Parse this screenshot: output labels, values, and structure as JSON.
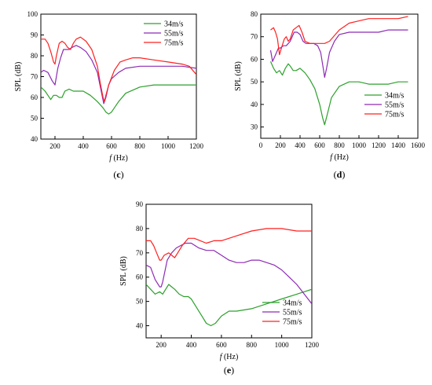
{
  "series_colors": {
    "34m/s": "#2ca02c",
    "55m/s": "#8e2ab5",
    "75m/s": "#ff2020"
  },
  "chart_data": [
    {
      "panel_label": "(c)",
      "type": "line",
      "xlabel_italic": "f",
      "xlabel_unit": "(Hz)",
      "ylabel": "SPL (dB)",
      "xlim": [
        100,
        1200
      ],
      "ylim": [
        40,
        100
      ],
      "xticks": [
        200,
        400,
        600,
        800,
        1000,
        1200
      ],
      "yticks": [
        40,
        50,
        60,
        70,
        80,
        90,
        100
      ],
      "legend_position": "top-right",
      "series": [
        {
          "name": "34m/s",
          "x": [
            100,
            130,
            150,
            170,
            190,
            210,
            230,
            250,
            270,
            300,
            330,
            360,
            400,
            450,
            500,
            540,
            560,
            580,
            600,
            650,
            700,
            800,
            900,
            1000,
            1100,
            1200
          ],
          "y": [
            65,
            63,
            61,
            59,
            61,
            61,
            60,
            60,
            63,
            64,
            63,
            63,
            63,
            61,
            58,
            55,
            53,
            52,
            53,
            58,
            62,
            65,
            66,
            66,
            66,
            66
          ]
        },
        {
          "name": "55m/s",
          "x": [
            100,
            120,
            150,
            180,
            200,
            220,
            240,
            260,
            280,
            300,
            320,
            350,
            380,
            420,
            460,
            500,
            530,
            545,
            560,
            580,
            600,
            650,
            700,
            800,
            900,
            1000,
            1100,
            1200
          ],
          "y": [
            72,
            73,
            72,
            68,
            66,
            74,
            79,
            83,
            83,
            83,
            84,
            85,
            84,
            82,
            78,
            72,
            62,
            57,
            60,
            66,
            69,
            72,
            74,
            75,
            75,
            75,
            75,
            74
          ]
        },
        {
          "name": "75m/s",
          "x": [
            100,
            130,
            150,
            170,
            190,
            200,
            210,
            230,
            250,
            270,
            290,
            310,
            330,
            350,
            380,
            420,
            460,
            500,
            520,
            540,
            550,
            560,
            580,
            620,
            660,
            700,
            750,
            800,
            900,
            1000,
            1100,
            1150,
            1200
          ],
          "y": [
            88,
            88,
            86,
            82,
            77,
            76,
            80,
            86,
            87,
            86,
            84,
            83,
            86,
            88,
            89,
            87,
            83,
            75,
            67,
            60,
            58,
            61,
            66,
            73,
            77,
            78,
            79,
            79,
            78,
            77,
            76,
            75,
            71
          ]
        }
      ]
    },
    {
      "panel_label": "(d)",
      "type": "line",
      "xlabel_italic": "f",
      "xlabel_unit": "(Hz)",
      "ylabel": "SPL (dB)",
      "xlim": [
        0,
        1600
      ],
      "ylim": [
        25,
        80
      ],
      "xticks": [
        0,
        200,
        400,
        600,
        800,
        1000,
        1200,
        1400,
        1600
      ],
      "yticks": [
        30,
        40,
        50,
        60,
        70,
        80
      ],
      "legend_position": "bottom-right",
      "series": [
        {
          "name": "34m/s",
          "x": [
            100,
            130,
            160,
            190,
            220,
            250,
            280,
            300,
            330,
            360,
            400,
            450,
            500,
            550,
            600,
            630,
            650,
            680,
            720,
            800,
            900,
            1000,
            1100,
            1200,
            1300,
            1400,
            1500
          ],
          "y": [
            59,
            56,
            54,
            55,
            53,
            56,
            58,
            57,
            55,
            55,
            56,
            54,
            51,
            47,
            40,
            34,
            31,
            36,
            43,
            48,
            50,
            50,
            49,
            49,
            49,
            50,
            50
          ]
        },
        {
          "name": "55m/s",
          "x": [
            100,
            120,
            150,
            180,
            200,
            230,
            260,
            300,
            340,
            370,
            400,
            430,
            460,
            500,
            540,
            580,
            610,
            640,
            650,
            670,
            700,
            750,
            800,
            900,
            1000,
            1100,
            1200,
            1300,
            1400,
            1500
          ],
          "y": [
            64,
            59,
            62,
            65,
            65,
            66,
            66,
            68,
            72,
            72,
            71,
            68,
            67,
            67,
            67,
            66,
            63,
            55,
            52,
            56,
            63,
            68,
            71,
            72,
            72,
            72,
            72,
            73,
            73,
            73
          ]
        },
        {
          "name": "75m/s",
          "x": [
            100,
            130,
            150,
            170,
            190,
            210,
            240,
            260,
            280,
            300,
            330,
            360,
            390,
            420,
            450,
            500,
            560,
            600,
            650,
            700,
            800,
            900,
            1000,
            1100,
            1200,
            1300,
            1400,
            1500
          ],
          "y": [
            73,
            74,
            72,
            69,
            62,
            65,
            69,
            70,
            68,
            69,
            73,
            74,
            75,
            72,
            68,
            67,
            67,
            67,
            67,
            68,
            73,
            76,
            77,
            78,
            78,
            78,
            78,
            79
          ]
        }
      ]
    },
    {
      "panel_label": "(e)",
      "type": "line",
      "xlabel_italic": "f",
      "xlabel_unit": "(Hz)",
      "ylabel": "SPL (dB)",
      "xlim": [
        100,
        1200
      ],
      "ylim": [
        35,
        90
      ],
      "xticks": [
        200,
        400,
        600,
        800,
        1000,
        1200
      ],
      "yticks": [
        40,
        50,
        60,
        70,
        80,
        90
      ],
      "legend_position": "bottom-right",
      "series": [
        {
          "name": "34m/s",
          "x": [
            100,
            130,
            160,
            190,
            210,
            230,
            250,
            270,
            290,
            320,
            350,
            380,
            400,
            430,
            470,
            500,
            530,
            560,
            600,
            650,
            700,
            800,
            900,
            1000,
            1100,
            1200
          ],
          "y": [
            57,
            55,
            53,
            54,
            53,
            55,
            57,
            56,
            55,
            53,
            52,
            52,
            51,
            48,
            44,
            41,
            40,
            41,
            44,
            46,
            46,
            47,
            49,
            51,
            53,
            55
          ]
        },
        {
          "name": "55m/s",
          "x": [
            100,
            130,
            160,
            190,
            200,
            210,
            240,
            270,
            300,
            330,
            360,
            400,
            450,
            500,
            550,
            600,
            650,
            700,
            750,
            800,
            850,
            900,
            950,
            1000,
            1050,
            1100,
            1150,
            1200
          ],
          "y": [
            65,
            64,
            59,
            56,
            56,
            58,
            67,
            70,
            72,
            73,
            74,
            74,
            72,
            71,
            71,
            69,
            67,
            66,
            66,
            67,
            67,
            66,
            65,
            63,
            60,
            57,
            53,
            49
          ]
        },
        {
          "name": "75m/s",
          "x": [
            100,
            130,
            150,
            170,
            190,
            200,
            220,
            250,
            270,
            290,
            310,
            340,
            380,
            400,
            420,
            460,
            500,
            550,
            600,
            650,
            700,
            800,
            900,
            1000,
            1100,
            1200
          ],
          "y": [
            75,
            75,
            73,
            70,
            67,
            67,
            69,
            70,
            69,
            68,
            70,
            73,
            76,
            76,
            76,
            75,
            74,
            75,
            75,
            76,
            77,
            79,
            80,
            80,
            79,
            79
          ]
        }
      ]
    }
  ]
}
